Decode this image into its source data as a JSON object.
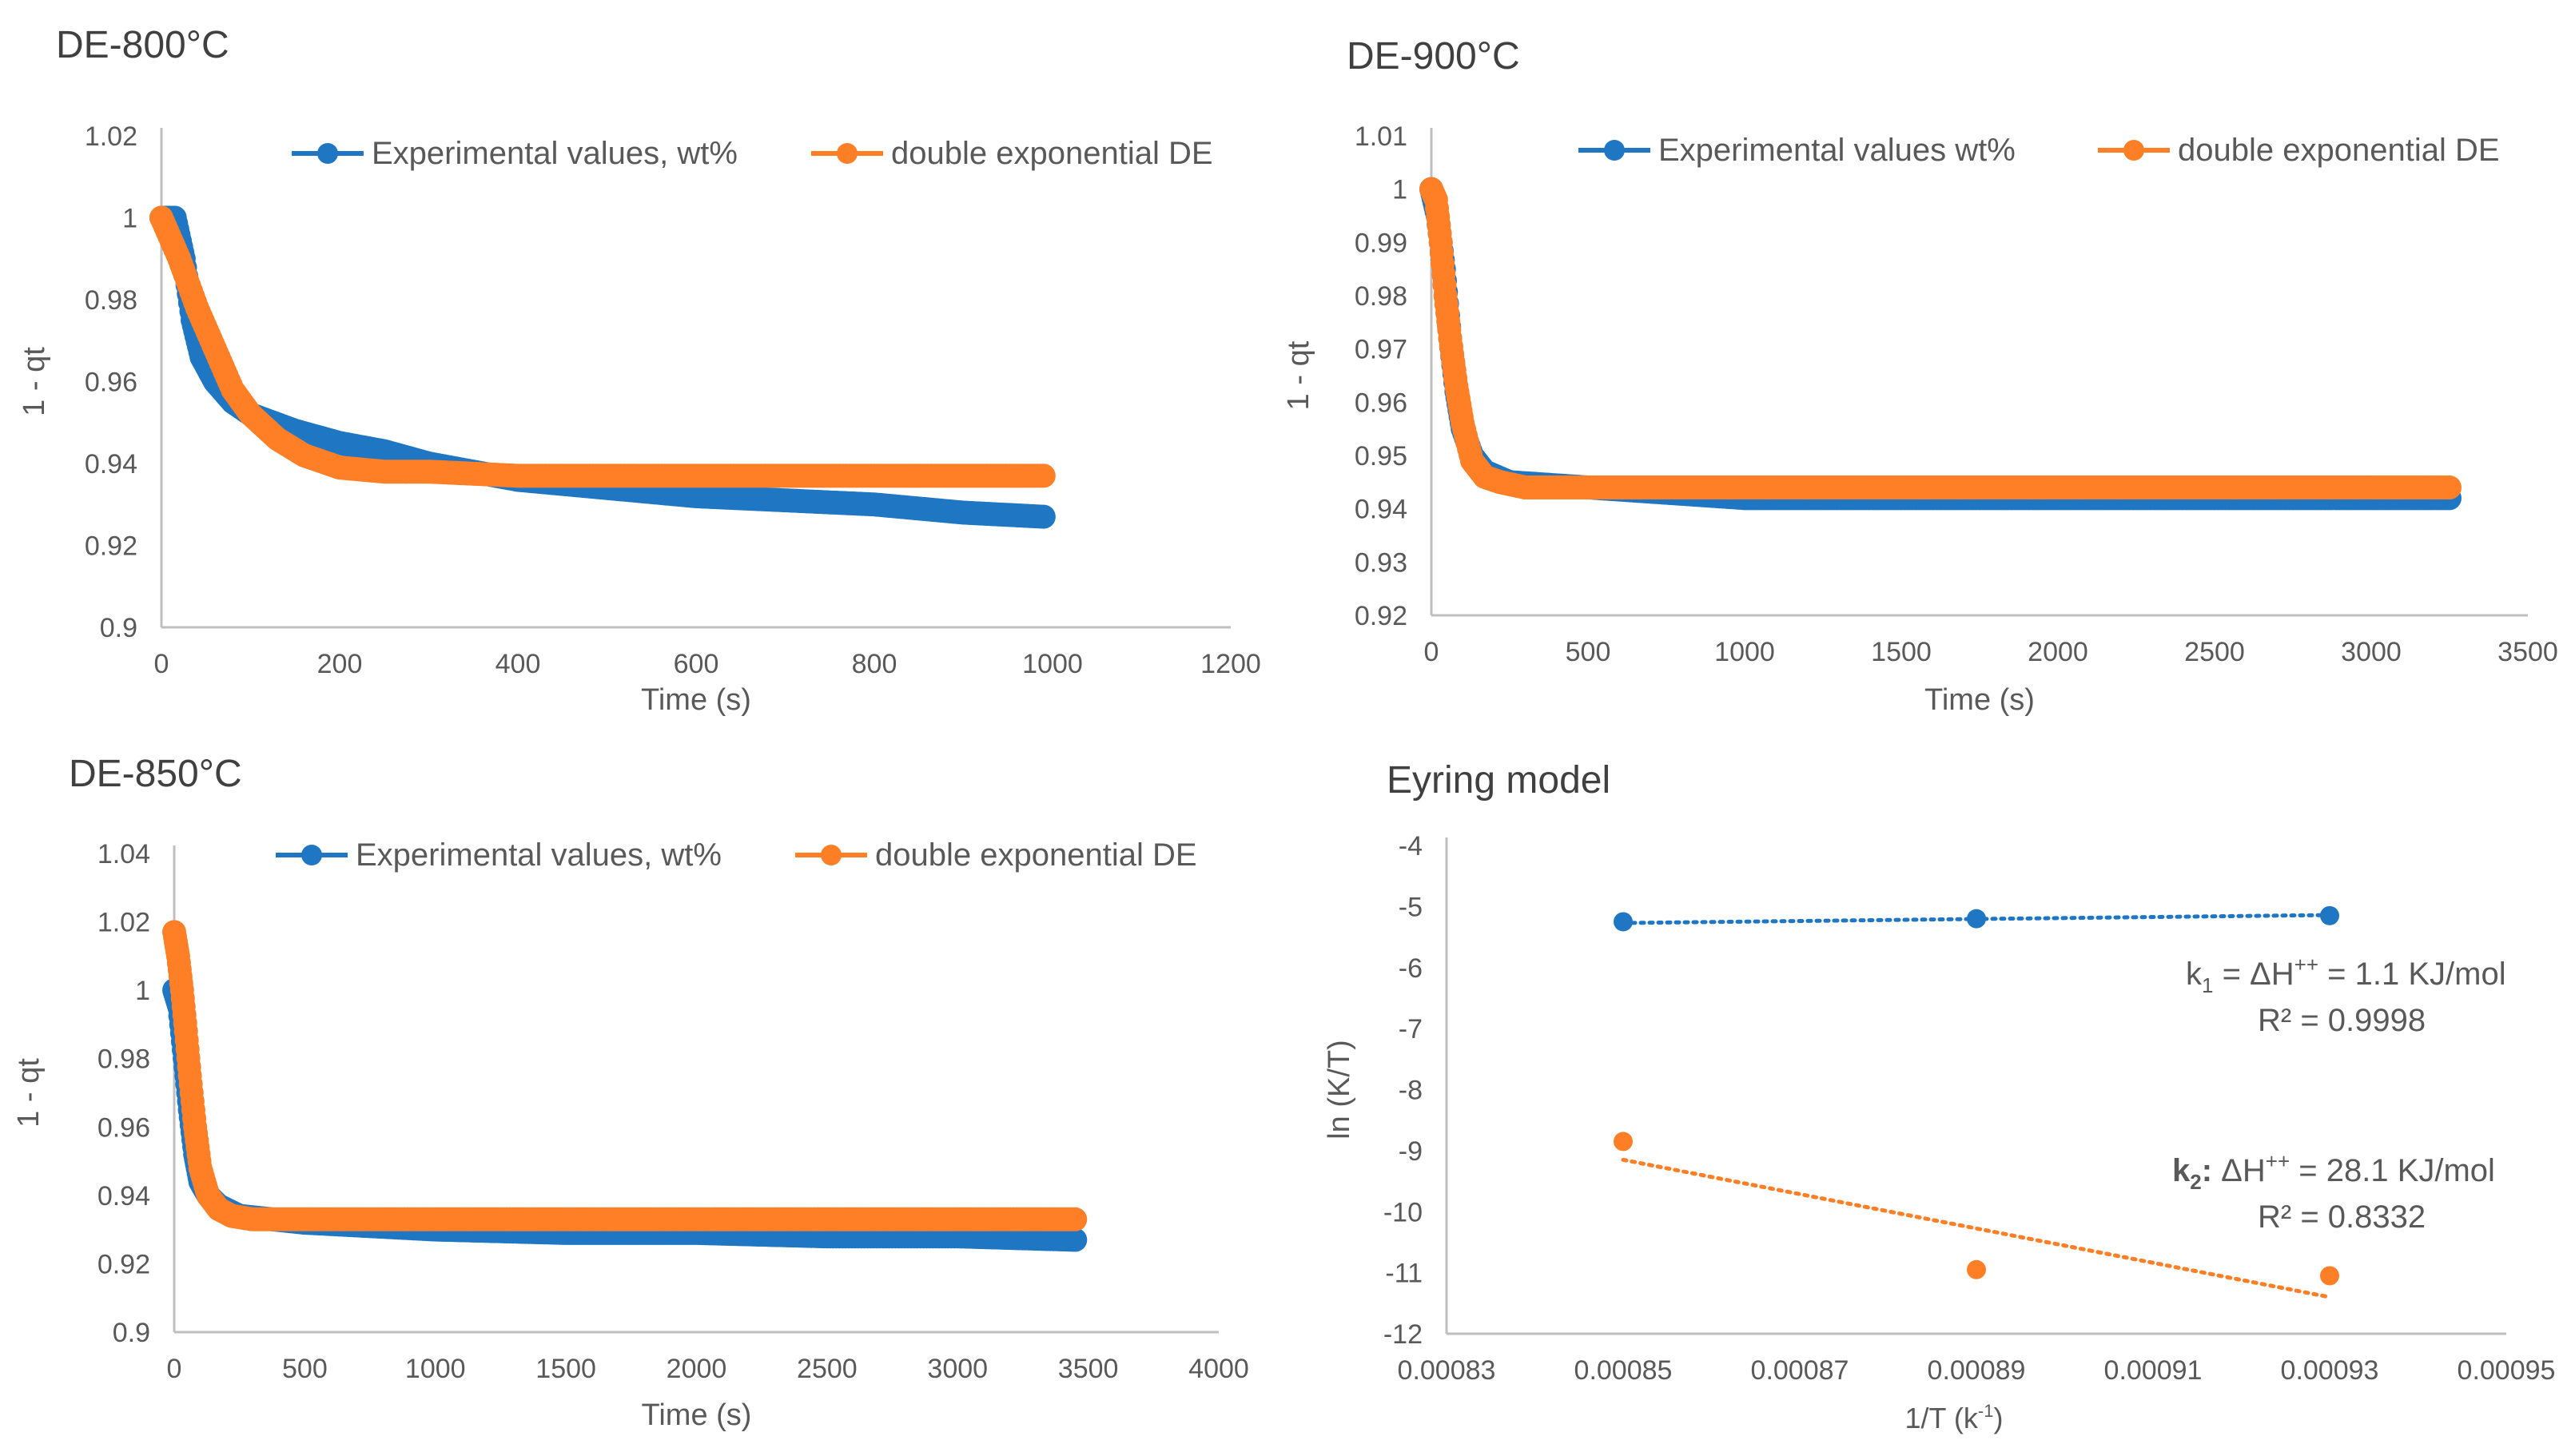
{
  "colors": {
    "experimental": "#1F77C4",
    "model": "#FF7F27",
    "axis": "#BFBFBF",
    "text": "#595959",
    "title": "#404040"
  },
  "chart_data": [
    {
      "id": "c800",
      "type": "scatter",
      "title": "DE-800°C",
      "xlabel": "Time (s)",
      "ylabel": "1 - qt",
      "xlim": [
        0,
        1200
      ],
      "ylim": [
        0.9,
        1.02
      ],
      "xticks": [
        0,
        200,
        400,
        600,
        800,
        1000,
        1200
      ],
      "xtick_labels": [
        "0",
        "200",
        "400",
        "600",
        "800",
        "1000",
        "1200"
      ],
      "yticks": [
        0.9,
        0.92,
        0.94,
        0.96,
        0.98,
        1.0,
        1.02
      ],
      "ytick_labels": [
        "0.9",
        "0.92",
        "0.94",
        "0.96",
        "0.98",
        "1",
        "1.02"
      ],
      "legend": [
        "Experimental values, wt%",
        "double exponential DE"
      ],
      "series": [
        {
          "name": "Experimental values, wt%",
          "color": "#1F77C4",
          "points": [
            [
              0,
              1.0
            ],
            [
              15,
              1.0
            ],
            [
              25,
              0.99
            ],
            [
              35,
              0.975
            ],
            [
              45,
              0.966
            ],
            [
              60,
              0.96
            ],
            [
              80,
              0.955
            ],
            [
              100,
              0.952
            ],
            [
              150,
              0.948
            ],
            [
              200,
              0.945
            ],
            [
              250,
              0.943
            ],
            [
              300,
              0.94
            ],
            [
              400,
              0.936
            ],
            [
              500,
              0.934
            ],
            [
              600,
              0.932
            ],
            [
              700,
              0.931
            ],
            [
              800,
              0.93
            ],
            [
              900,
              0.928
            ],
            [
              990,
              0.927
            ]
          ]
        },
        {
          "name": "double exponential DE",
          "color": "#FF7F27",
          "points": [
            [
              0,
              1.0
            ],
            [
              20,
              0.99
            ],
            [
              40,
              0.978
            ],
            [
              60,
              0.968
            ],
            [
              80,
              0.958
            ],
            [
              100,
              0.952
            ],
            [
              130,
              0.946
            ],
            [
              160,
              0.942
            ],
            [
              200,
              0.939
            ],
            [
              250,
              0.938
            ],
            [
              300,
              0.938
            ],
            [
              400,
              0.937
            ],
            [
              600,
              0.937
            ],
            [
              800,
              0.937
            ],
            [
              990,
              0.937
            ]
          ]
        }
      ]
    },
    {
      "id": "c900",
      "type": "scatter",
      "title": "DE-900°C",
      "xlabel": "Time (s)",
      "ylabel": "1 - qt",
      "xlim": [
        0,
        3500
      ],
      "ylim": [
        0.92,
        1.01
      ],
      "xticks": [
        0,
        500,
        1000,
        1500,
        2000,
        2500,
        3000,
        3500
      ],
      "xtick_labels": [
        "0",
        "500",
        "1000",
        "1500",
        "2000",
        "2500",
        "3000",
        "3500"
      ],
      "yticks": [
        0.92,
        0.93,
        0.94,
        0.95,
        0.96,
        0.97,
        0.98,
        0.99,
        1.0,
        1.01
      ],
      "ytick_labels": [
        "0.92",
        "0.93",
        "0.94",
        "0.95",
        "0.96",
        "0.97",
        "0.98",
        "0.99",
        "1",
        "1.01"
      ],
      "legend": [
        "Experimental values wt%",
        "double exponential DE"
      ],
      "series": [
        {
          "name": "Experimental values wt%",
          "color": "#1F77C4",
          "points": [
            [
              0,
              1.0
            ],
            [
              20,
              0.995
            ],
            [
              40,
              0.985
            ],
            [
              60,
              0.972
            ],
            [
              80,
              0.962
            ],
            [
              100,
              0.955
            ],
            [
              130,
              0.95
            ],
            [
              170,
              0.947
            ],
            [
              250,
              0.945
            ],
            [
              500,
              0.944
            ],
            [
              1000,
              0.942
            ],
            [
              1500,
              0.942
            ],
            [
              2000,
              0.942
            ],
            [
              2500,
              0.942
            ],
            [
              3000,
              0.942
            ],
            [
              3250,
              0.942
            ]
          ]
        },
        {
          "name": "double exponential DE",
          "color": "#FF7F27",
          "points": [
            [
              0,
              1.0
            ],
            [
              15,
              0.998
            ],
            [
              30,
              0.99
            ],
            [
              45,
              0.98
            ],
            [
              60,
              0.972
            ],
            [
              80,
              0.963
            ],
            [
              100,
              0.956
            ],
            [
              130,
              0.949
            ],
            [
              170,
              0.946
            ],
            [
              220,
              0.945
            ],
            [
              300,
              0.944
            ],
            [
              500,
              0.944
            ],
            [
              1000,
              0.944
            ],
            [
              1500,
              0.944
            ],
            [
              2000,
              0.944
            ],
            [
              2500,
              0.944
            ],
            [
              3000,
              0.944
            ],
            [
              3250,
              0.944
            ]
          ]
        }
      ]
    },
    {
      "id": "c850",
      "type": "scatter",
      "title": "DE-850°C",
      "xlabel": "Time (s)",
      "ylabel": "1 - qt",
      "xlim": [
        0,
        4000
      ],
      "ylim": [
        0.9,
        1.04
      ],
      "xticks": [
        0,
        500,
        1000,
        1500,
        2000,
        2500,
        3000,
        3500,
        4000
      ],
      "xtick_labels": [
        "0",
        "500",
        "1000",
        "1500",
        "2000",
        "2500",
        "3000",
        "3500",
        "4000"
      ],
      "yticks": [
        0.9,
        0.92,
        0.94,
        0.96,
        0.98,
        1.0,
        1.02,
        1.04
      ],
      "ytick_labels": [
        "0.9",
        "0.92",
        "0.94",
        "0.96",
        "0.98",
        "1",
        "1.02",
        "1.04"
      ],
      "legend": [
        "Experimental values, wt%",
        "double exponential DE"
      ],
      "series": [
        {
          "name": "Experimental values, wt%",
          "color": "#1F77C4",
          "points": [
            [
              0,
              1.0
            ],
            [
              20,
              0.995
            ],
            [
              40,
              0.98
            ],
            [
              60,
              0.965
            ],
            [
              80,
              0.952
            ],
            [
              100,
              0.944
            ],
            [
              130,
              0.94
            ],
            [
              170,
              0.937
            ],
            [
              250,
              0.934
            ],
            [
              500,
              0.932
            ],
            [
              1000,
              0.93
            ],
            [
              1500,
              0.929
            ],
            [
              2000,
              0.929
            ],
            [
              2500,
              0.928
            ],
            [
              3000,
              0.928
            ],
            [
              3450,
              0.927
            ]
          ]
        },
        {
          "name": "double exponential DE",
          "color": "#FF7F27",
          "points": [
            [
              0,
              1.017
            ],
            [
              15,
              1.01
            ],
            [
              30,
              1.0
            ],
            [
              45,
              0.988
            ],
            [
              60,
              0.975
            ],
            [
              80,
              0.96
            ],
            [
              100,
              0.948
            ],
            [
              130,
              0.94
            ],
            [
              170,
              0.936
            ],
            [
              220,
              0.934
            ],
            [
              300,
              0.933
            ],
            [
              500,
              0.933
            ],
            [
              1000,
              0.933
            ],
            [
              1500,
              0.933
            ],
            [
              2000,
              0.933
            ],
            [
              2500,
              0.933
            ],
            [
              3000,
              0.933
            ],
            [
              3450,
              0.933
            ]
          ]
        }
      ]
    },
    {
      "id": "eyring",
      "type": "scatter",
      "title": "Eyring model",
      "xlabel_main": "1/T (k",
      "xlabel_sup": "-1",
      "xlabel_end": ")",
      "ylabel": "ln (K/T)",
      "xlim": [
        0.00083,
        0.00095
      ],
      "ylim": [
        -12,
        -4
      ],
      "xticks": [
        0.00083,
        0.00085,
        0.00087,
        0.00089,
        0.00091,
        0.00093,
        0.00095
      ],
      "xtick_labels": [
        "0.00083",
        "0.00085",
        "0.00087",
        "0.00089",
        "0.00091",
        "0.00093",
        "0.00095"
      ],
      "yticks": [
        -12,
        -11,
        -10,
        -9,
        -8,
        -7,
        -6,
        -5,
        -4
      ],
      "ytick_labels": [
        "-12",
        "-11",
        "-10",
        "-9",
        "-8",
        "-7",
        "-6",
        "-5",
        "-4"
      ],
      "series": [
        {
          "name": "k1",
          "color": "#1F77C4",
          "points": [
            [
              0.00085,
              -5.25
            ],
            [
              0.00089,
              -5.2
            ],
            [
              0.00093,
              -5.15
            ]
          ],
          "trendline": [
            [
              0.00085,
              -5.27
            ],
            [
              0.00093,
              -5.14
            ]
          ]
        },
        {
          "name": "k2",
          "color": "#FF7F27",
          "points": [
            [
              0.00085,
              -8.85
            ],
            [
              0.00089,
              -10.95
            ],
            [
              0.00093,
              -11.05
            ]
          ],
          "trendline": [
            [
              0.00085,
              -9.15
            ],
            [
              0.00093,
              -11.4
            ]
          ]
        }
      ],
      "annotations": {
        "k1_prefix": "k",
        "k1_sub": "1",
        "k1_text": " = ΔH",
        "k1_sup": "++",
        "k1_value": " = 1.1 KJ/mol",
        "k1_r2": "R² = 0.9998",
        "k2_prefix": "k",
        "k2_sub": "2",
        "k2_colon": ":",
        "k2_text": "  ΔH",
        "k2_sup": "++",
        "k2_value": " = 28.1 KJ/mol",
        "k2_r2": "R² = 0.8332"
      }
    }
  ]
}
